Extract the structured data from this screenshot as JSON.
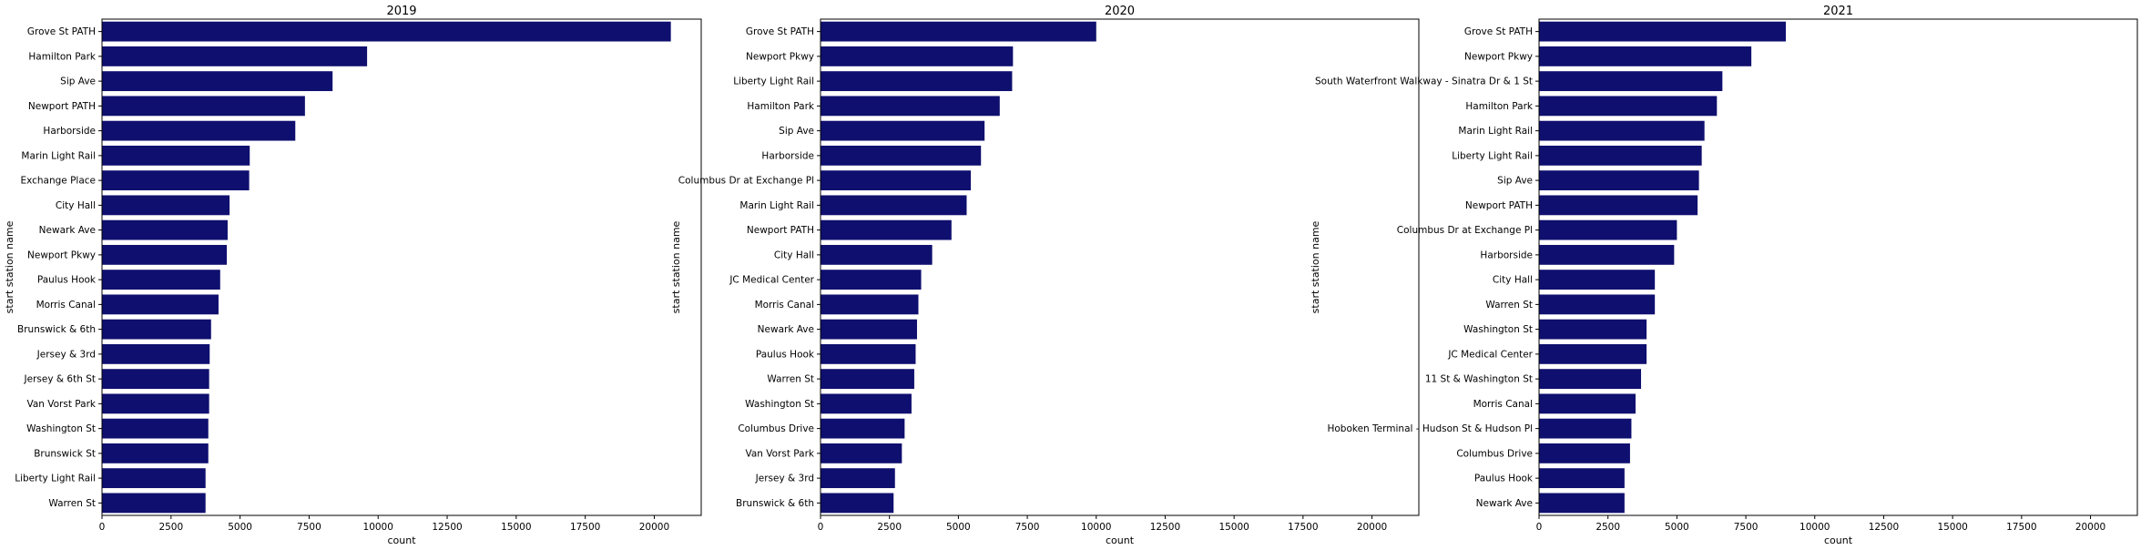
{
  "chart_data": [
    {
      "type": "bar",
      "orientation": "horizontal",
      "title": "2019",
      "xlabel": "count",
      "ylabel": "start station name",
      "xlim": [
        0,
        21700
      ],
      "xticks": [
        0,
        2500,
        5000,
        7500,
        10000,
        12500,
        15000,
        17500,
        20000
      ],
      "color": "#0f0f6f",
      "grid": false,
      "categories": [
        "Grove St PATH",
        "Hamilton Park",
        "Sip Ave",
        "Newport PATH",
        "Harborside",
        "Marin Light Rail",
        "Exchange Place",
        "City Hall",
        "Newark Ave",
        "Newport Pkwy",
        "Paulus Hook",
        "Morris Canal",
        "Brunswick & 6th",
        "Jersey & 3rd",
        "Jersey & 6th St",
        "Van Vorst Park",
        "Washington St",
        "Brunswick St",
        "Liberty Light Rail",
        "Warren St"
      ],
      "values": [
        20600,
        9600,
        8350,
        7350,
        7000,
        5350,
        5330,
        4620,
        4550,
        4520,
        4280,
        4220,
        3950,
        3900,
        3880,
        3880,
        3850,
        3850,
        3750,
        3750
      ]
    },
    {
      "type": "bar",
      "orientation": "horizontal",
      "title": "2020",
      "xlabel": "count",
      "ylabel": "start station name",
      "xlim": [
        0,
        21700
      ],
      "xticks": [
        0,
        2500,
        5000,
        7500,
        10000,
        12500,
        15000,
        17500,
        20000
      ],
      "color": "#0f0f6f",
      "grid": false,
      "categories": [
        "Grove St PATH",
        "Newport Pkwy",
        "Liberty Light Rail",
        "Hamilton Park",
        "Sip Ave",
        "Harborside",
        "Columbus Dr at Exchange Pl",
        "Marin Light Rail",
        "Newport PATH",
        "City Hall",
        "JC Medical Center",
        "Morris Canal",
        "Newark Ave",
        "Paulus Hook",
        "Warren St",
        "Washington St",
        "Columbus Drive",
        "Van Vorst Park",
        "Jersey & 3rd",
        "Brunswick & 6th"
      ],
      "values": [
        10000,
        6980,
        6950,
        6500,
        5950,
        5820,
        5450,
        5300,
        4750,
        4050,
        3650,
        3550,
        3500,
        3450,
        3400,
        3300,
        3050,
        2950,
        2700,
        2650
      ]
    },
    {
      "type": "bar",
      "orientation": "horizontal",
      "title": "2021",
      "xlabel": "count",
      "ylabel": "start station name",
      "xlim": [
        0,
        21700
      ],
      "xticks": [
        0,
        2500,
        5000,
        7500,
        10000,
        12500,
        15000,
        17500,
        20000
      ],
      "color": "#0f0f6f",
      "grid": false,
      "categories": [
        "Grove St PATH",
        "Newport Pkwy",
        "South Waterfront Walkway - Sinatra Dr & 1 St",
        "Hamilton Park",
        "Marin Light Rail",
        "Liberty Light Rail",
        "Sip Ave",
        "Newport PATH",
        "Columbus Dr at Exchange Pl",
        "Harborside",
        "City Hall",
        "Warren St",
        "Washington St",
        "JC Medical Center",
        "11 St & Washington St",
        "Morris Canal",
        "Hoboken Terminal - Hudson St & Hudson Pl",
        "Columbus Drive",
        "Paulus Hook",
        "Newark Ave"
      ],
      "values": [
        8950,
        7700,
        6650,
        6450,
        6000,
        5900,
        5800,
        5750,
        5000,
        4900,
        4200,
        4200,
        3900,
        3900,
        3700,
        3500,
        3350,
        3300,
        3100,
        3100
      ]
    }
  ]
}
